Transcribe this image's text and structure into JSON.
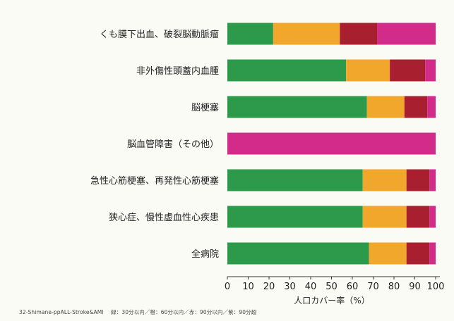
{
  "chart_data": {
    "type": "bar",
    "orientation": "horizontal",
    "stacked": true,
    "categories": [
      "くも膜下出血、破裂脳動脈瘤",
      "非外傷性頭蓋内血腫",
      "脳梗塞",
      "脳血管障害（その他）",
      "急性心筋梗塞、再発性心筋梗塞",
      "狭心症、慢性虚血性心疾患",
      "全病院"
    ],
    "series": [
      {
        "name": "",
        "color": "#2c9a4a",
        "values": [
          22,
          57,
          67,
          0,
          65,
          65,
          68
        ]
      },
      {
        "name": "",
        "color": "#f0a72c",
        "values": [
          32,
          21,
          18,
          0,
          21,
          21,
          18
        ]
      },
      {
        "name": "",
        "color": "#a82030",
        "values": [
          18,
          17,
          11,
          0,
          11,
          11,
          11
        ]
      },
      {
        "name": "",
        "color": "#d22b8a",
        "values": [
          28,
          5,
          4,
          100,
          3,
          3,
          3
        ]
      }
    ],
    "xlabel": "人口カバー率（%）",
    "xlim": [
      0,
      100
    ],
    "xticks": [
      0,
      10,
      20,
      30,
      40,
      50,
      60,
      70,
      80,
      90,
      100
    ],
    "grid": false,
    "legend": "none"
  },
  "footnote": {
    "source": "32-Shimane-ppALL-Stroke&AMI",
    "key": "緑：30分以内／橙：60分以内／赤：90分以内／紫：90分超"
  }
}
